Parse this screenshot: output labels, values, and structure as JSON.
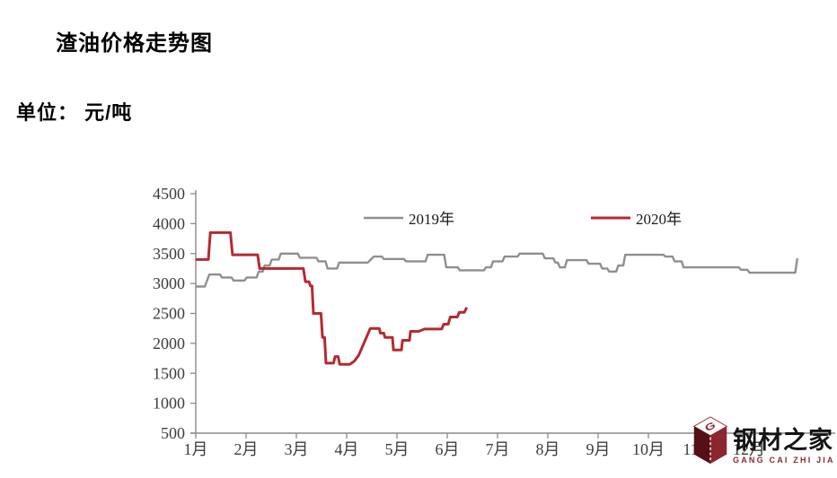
{
  "page": {
    "title": "渣油价格走势图",
    "unit_label": "单位： 元/吨"
  },
  "logo": {
    "title": "钢材之家",
    "subtitle": "GANG CAI ZHI JIA",
    "brand_color": "#8c2630",
    "icon": "cube-G-icon"
  },
  "chart_data": {
    "type": "line",
    "title": "渣油价格走势图",
    "unit": "元/吨",
    "xlabel": "",
    "ylabel": "",
    "grid": false,
    "legend_position": "top-inside",
    "ylim": [
      500,
      4500
    ],
    "y_ticks": [
      500,
      1000,
      1500,
      2000,
      2500,
      3000,
      3500,
      4000,
      4500
    ],
    "x_tick_labels": [
      "1月",
      "2月",
      "3月",
      "4月",
      "5月",
      "6月",
      "7月",
      "8月",
      "9月",
      "10月",
      "11月",
      "12月"
    ],
    "xlim_months": [
      1,
      13
    ],
    "axis_color": "#8a8a8a",
    "tick_label_color": "#3d3d3d",
    "series": [
      {
        "name": "2019年",
        "color": "#8f8f8f",
        "stroke_width": 2.4,
        "points": [
          [
            1.0,
            2950
          ],
          [
            1.18,
            2950
          ],
          [
            1.27,
            3150
          ],
          [
            1.48,
            3150
          ],
          [
            1.52,
            3100
          ],
          [
            1.71,
            3100
          ],
          [
            1.75,
            3050
          ],
          [
            1.97,
            3050
          ],
          [
            2.01,
            3100
          ],
          [
            2.21,
            3100
          ],
          [
            2.25,
            3200
          ],
          [
            2.33,
            3200
          ],
          [
            2.37,
            3300
          ],
          [
            2.47,
            3300
          ],
          [
            2.51,
            3400
          ],
          [
            2.65,
            3400
          ],
          [
            2.69,
            3500
          ],
          [
            3.03,
            3500
          ],
          [
            3.07,
            3430
          ],
          [
            3.4,
            3430
          ],
          [
            3.44,
            3370
          ],
          [
            3.58,
            3370
          ],
          [
            3.62,
            3250
          ],
          [
            3.81,
            3250
          ],
          [
            3.85,
            3350
          ],
          [
            4.42,
            3350
          ],
          [
            4.54,
            3450
          ],
          [
            4.7,
            3450
          ],
          [
            4.74,
            3410
          ],
          [
            5.14,
            3410
          ],
          [
            5.18,
            3370
          ],
          [
            5.57,
            3370
          ],
          [
            5.61,
            3480
          ],
          [
            5.94,
            3480
          ],
          [
            5.98,
            3270
          ],
          [
            6.21,
            3270
          ],
          [
            6.25,
            3220
          ],
          [
            6.73,
            3220
          ],
          [
            6.77,
            3270
          ],
          [
            6.87,
            3270
          ],
          [
            6.91,
            3370
          ],
          [
            7.1,
            3370
          ],
          [
            7.14,
            3450
          ],
          [
            7.4,
            3450
          ],
          [
            7.44,
            3500
          ],
          [
            7.9,
            3500
          ],
          [
            7.94,
            3420
          ],
          [
            8.11,
            3420
          ],
          [
            8.15,
            3350
          ],
          [
            8.2,
            3350
          ],
          [
            8.24,
            3270
          ],
          [
            8.34,
            3270
          ],
          [
            8.38,
            3390
          ],
          [
            8.77,
            3390
          ],
          [
            8.81,
            3330
          ],
          [
            9.04,
            3330
          ],
          [
            9.08,
            3250
          ],
          [
            9.18,
            3250
          ],
          [
            9.22,
            3200
          ],
          [
            9.36,
            3200
          ],
          [
            9.4,
            3300
          ],
          [
            9.5,
            3300
          ],
          [
            9.54,
            3480
          ],
          [
            10.3,
            3480
          ],
          [
            10.34,
            3450
          ],
          [
            10.48,
            3450
          ],
          [
            10.52,
            3370
          ],
          [
            10.66,
            3370
          ],
          [
            10.7,
            3270
          ],
          [
            11.8,
            3270
          ],
          [
            11.84,
            3230
          ],
          [
            11.97,
            3230
          ],
          [
            12.01,
            3180
          ],
          [
            12.92,
            3180
          ],
          [
            12.96,
            3420
          ]
        ]
      },
      {
        "name": "2020年",
        "color": "#b52a30",
        "stroke_width": 3,
        "points": [
          [
            1.0,
            3400
          ],
          [
            1.25,
            3400
          ],
          [
            1.29,
            3850
          ],
          [
            1.69,
            3850
          ],
          [
            1.73,
            3480
          ],
          [
            2.23,
            3480
          ],
          [
            2.27,
            3250
          ],
          [
            3.14,
            3250
          ],
          [
            3.18,
            3030
          ],
          [
            3.25,
            3030
          ],
          [
            3.28,
            2960
          ],
          [
            3.31,
            2960
          ],
          [
            3.34,
            2500
          ],
          [
            3.49,
            2500
          ],
          [
            3.52,
            2100
          ],
          [
            3.56,
            2100
          ],
          [
            3.59,
            1670
          ],
          [
            3.74,
            1670
          ],
          [
            3.77,
            1780
          ],
          [
            3.83,
            1780
          ],
          [
            3.86,
            1650
          ],
          [
            4.06,
            1650
          ],
          [
            4.15,
            1700
          ],
          [
            4.24,
            1800
          ],
          [
            4.47,
            2250
          ],
          [
            4.65,
            2250
          ],
          [
            4.67,
            2170
          ],
          [
            4.74,
            2170
          ],
          [
            4.76,
            2100
          ],
          [
            4.91,
            2100
          ],
          [
            4.93,
            1890
          ],
          [
            5.09,
            1890
          ],
          [
            5.11,
            2050
          ],
          [
            5.25,
            2050
          ],
          [
            5.27,
            2200
          ],
          [
            5.43,
            2200
          ],
          [
            5.55,
            2240
          ],
          [
            5.89,
            2240
          ],
          [
            5.93,
            2320
          ],
          [
            6.02,
            2320
          ],
          [
            6.06,
            2440
          ],
          [
            6.2,
            2440
          ],
          [
            6.24,
            2520
          ],
          [
            6.34,
            2520
          ],
          [
            6.39,
            2600
          ]
        ]
      }
    ]
  }
}
